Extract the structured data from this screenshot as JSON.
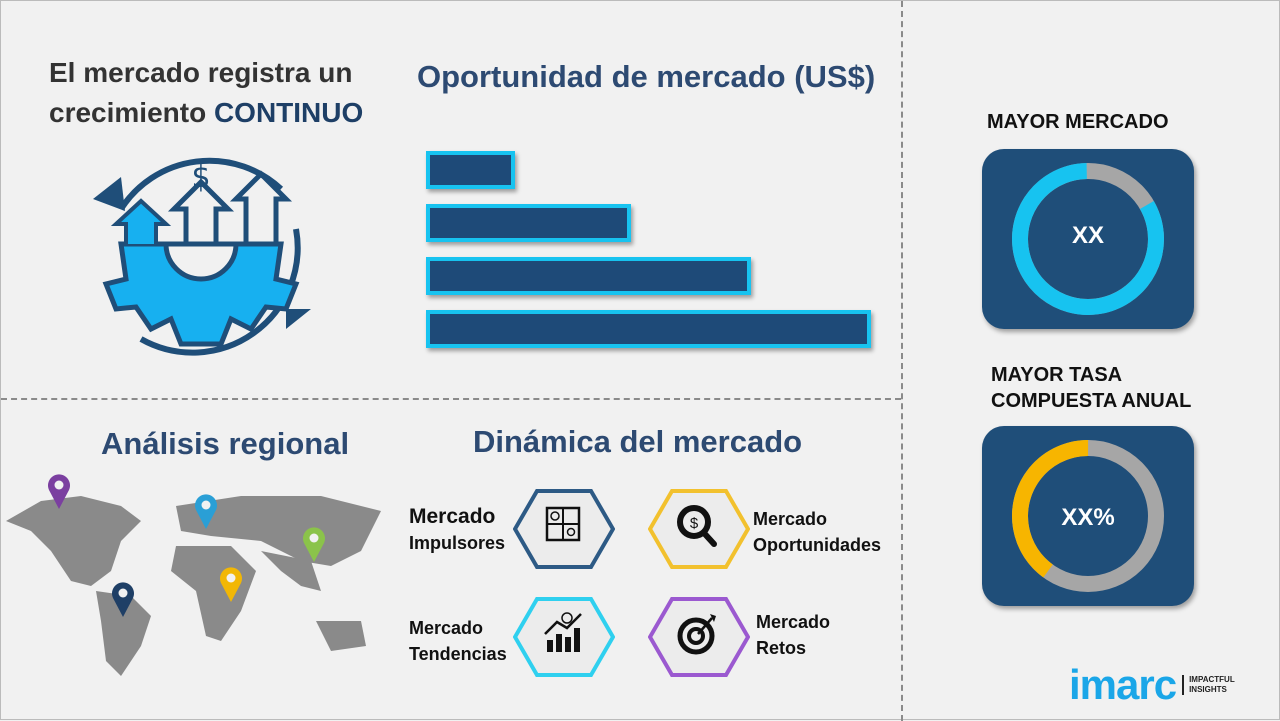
{
  "headline": {
    "line1": "El mercado registra un",
    "line2_prefix": "crecimiento ",
    "line2_highlight": "CONTINUO"
  },
  "opportunity": {
    "title": "Oportunidad de mercado (US$)",
    "bars_relative": [
      0.2,
      0.46,
      0.73,
      1.0
    ],
    "bar_color": "#1e4a78",
    "bar_border": "#17c3f0"
  },
  "regional": {
    "title": "Análisis regional",
    "pins": [
      "#7b3fa0",
      "#2a9fd6",
      "#8bc34a",
      "#f2b705",
      "#1f3f66"
    ]
  },
  "dynamics": {
    "title": "Dinámica del mercado",
    "items": [
      {
        "line1": "Mercado",
        "line2": "Impulsores",
        "color": "#2d5a85",
        "icon": "puzzle-icon"
      },
      {
        "line1": "Mercado",
        "line2": "Oportunidades",
        "color": "#f2c12e",
        "icon": "dollar-search-icon"
      },
      {
        "line1": "Mercado",
        "line2": "Tendencias",
        "color": "#2fd0ef",
        "icon": "growth-chart-icon"
      },
      {
        "line1": "Mercado",
        "line2": "Retos",
        "color": "#9b59d0",
        "icon": "target-icon"
      }
    ]
  },
  "largest_market": {
    "title": "MAYOR MERCADO",
    "value": "XX",
    "share": 0.83,
    "color": "#17c3f0"
  },
  "highest_cagr": {
    "title_line1": "MAYOR TASA",
    "title_line2": "COMPUESTA ANUAL",
    "value": "XX%",
    "share": 0.4,
    "color": "#f7b500"
  },
  "logo": {
    "brand": "imarc",
    "tagline1": "IMPACTFUL",
    "tagline2": "INSIGHTS",
    "color": "#1aa6e8"
  }
}
